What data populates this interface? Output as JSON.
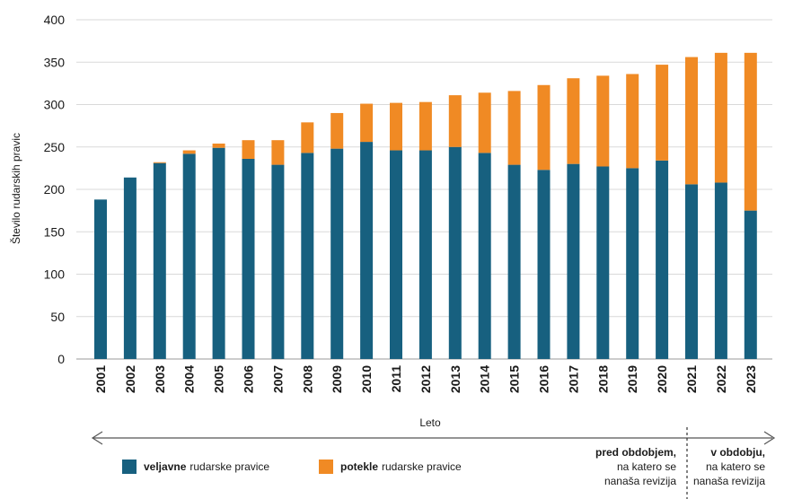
{
  "chart_data": {
    "type": "bar",
    "stacked": true,
    "categories": [
      "2001",
      "2002",
      "2003",
      "2004",
      "2005",
      "2006",
      "2007",
      "2008",
      "2009",
      "2010",
      "2011",
      "2012",
      "2013",
      "2014",
      "2015",
      "2016",
      "2017",
      "2018",
      "2019",
      "2020",
      "2021",
      "2022",
      "2023"
    ],
    "series": [
      {
        "name": "veljavne rudarske pravice",
        "name_bold": "veljavne",
        "name_rest": "rudarske pravice",
        "color": "#17607f",
        "values": [
          188,
          214,
          231,
          242,
          249,
          236,
          229,
          243,
          248,
          256,
          246,
          246,
          250,
          243,
          229,
          223,
          230,
          227,
          225,
          234,
          206,
          208,
          175
        ]
      },
      {
        "name": "potekle rudarske pravice",
        "name_bold": "potekle",
        "name_rest": "rudarske pravice",
        "color": "#f08a24",
        "values": [
          0,
          0,
          1,
          4,
          5,
          22,
          29,
          36,
          42,
          45,
          56,
          57,
          61,
          71,
          87,
          100,
          101,
          107,
          111,
          113,
          150,
          153,
          186
        ]
      }
    ],
    "ylabel": "Število rudarskih pravic",
    "xlabel": "Leto",
    "ylim": [
      0,
      400
    ],
    "yticks": [
      0,
      50,
      100,
      150,
      200,
      250,
      300,
      350,
      400
    ],
    "grid": true,
    "legend_position": "bottom-left",
    "annotations": {
      "before": {
        "line1": "pred obdobjem,",
        "line2": "na katero se",
        "line3": "nanaša revizija"
      },
      "during": {
        "line1": "v obdobju,",
        "line2": "na katero se",
        "line3": "nanaša revizija"
      }
    }
  }
}
